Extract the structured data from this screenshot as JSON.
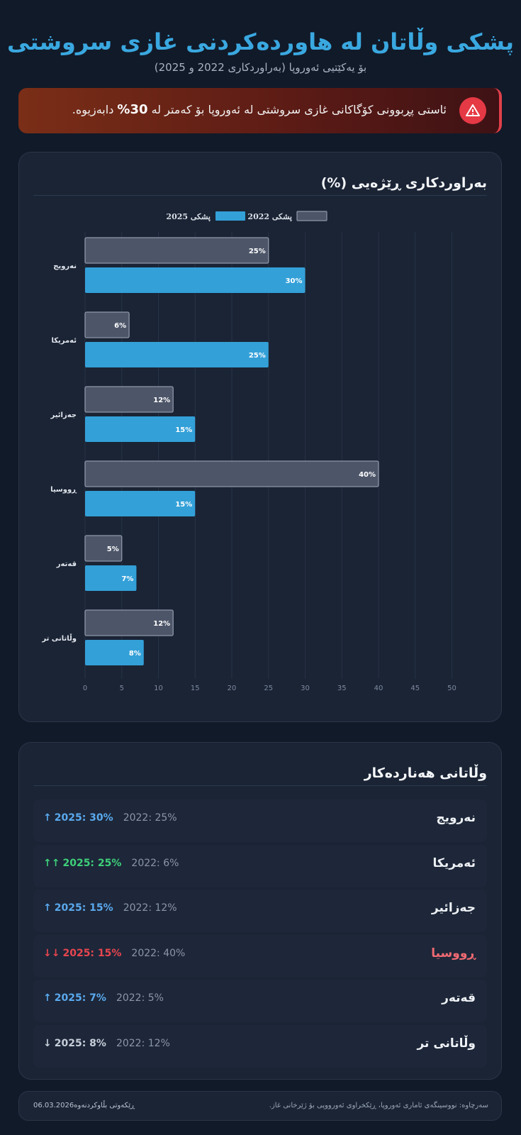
{
  "header": {
    "title": "پشکی وڵاتان لە هاوردەکردنی غازی سروشتی",
    "subtitle": "بۆ یەکێتیی ئەوروپا (بەراوردکاری 2022 و 2025)"
  },
  "alert": {
    "icon": "warning-triangle-icon",
    "text_before": "ئاستی پڕبوونی کۆگاکانی غازی سروشتی لە ئەوروپا بۆ کەمتر لە ",
    "highlight": "30%",
    "text_after": " دابەزیوە."
  },
  "chart_card": {
    "title": "بەراوردکاری ڕێژەیی (%)"
  },
  "chart_data": {
    "type": "bar",
    "orientation": "horizontal",
    "title": "بەراوردکاری ڕێژەیی (%)",
    "categories": [
      "نەرویج",
      "ئەمریکا",
      "جەزائیر",
      "ڕووسیا",
      "قەتەر",
      "وڵاتانی تر"
    ],
    "series": [
      {
        "name": "پشکی 2022",
        "values": [
          25,
          6,
          12,
          40,
          5,
          12
        ],
        "labels": [
          "25%",
          "6%",
          "12%",
          "40%",
          "5%",
          "12%"
        ],
        "color": "#4d5669"
      },
      {
        "name": "پشکی 2025",
        "values": [
          30,
          25,
          15,
          15,
          7,
          8
        ],
        "labels": [
          "30%",
          "25%",
          "15%",
          "15%",
          "7%",
          "8%"
        ],
        "color": "#33a0d8"
      }
    ],
    "xlim": [
      0,
      50
    ],
    "xticks": [
      "0",
      "5",
      "10",
      "15",
      "20",
      "25",
      "30",
      "35",
      "40",
      "45",
      "50"
    ],
    "grid": true,
    "legend": "top-center"
  },
  "list_card": {
    "title": "وڵاتانی هەناردەکار",
    "rows": [
      {
        "name": "نەرویج",
        "v2022": "2022: 25%",
        "v2025": "2025: 30%",
        "arrow": "↑",
        "color": "#5aa9ee",
        "name_color": "#eef1f5"
      },
      {
        "name": "ئەمریکا",
        "v2022": "2022: 6%",
        "v2025": "2025: 25%",
        "arrow": "↑↑",
        "color": "#3ecf7a",
        "name_color": "#eef1f5"
      },
      {
        "name": "جەزائیر",
        "v2022": "2022: 12%",
        "v2025": "2025: 15%",
        "arrow": "↑",
        "color": "#5aa9ee",
        "name_color": "#eef1f5"
      },
      {
        "name": "ڕووسیا",
        "v2022": "2022: 40%",
        "v2025": "2025: 15%",
        "arrow": "↓↓",
        "color": "#e8454f",
        "name_color": "#f06a72"
      },
      {
        "name": "قەتەر",
        "v2022": "2022: 5%",
        "v2025": "2025: 7%",
        "arrow": "↑",
        "color": "#5aa9ee",
        "name_color": "#eef1f5"
      },
      {
        "name": "وڵاتانی تر",
        "v2022": "2022: 12%",
        "v2025": "2025: 8%",
        "arrow": "↓",
        "color": "#c7ced9",
        "name_color": "#eef1f5"
      }
    ]
  },
  "footer": {
    "source": "سەرچاوە: نووسینگەی ئاماری ئەوروپا، ڕێکخراوی ئەورووپی بۆ ژێرخانی غاز.",
    "date": "ڕێکەوتی بڵاوکردنەوە06.03.2026"
  }
}
